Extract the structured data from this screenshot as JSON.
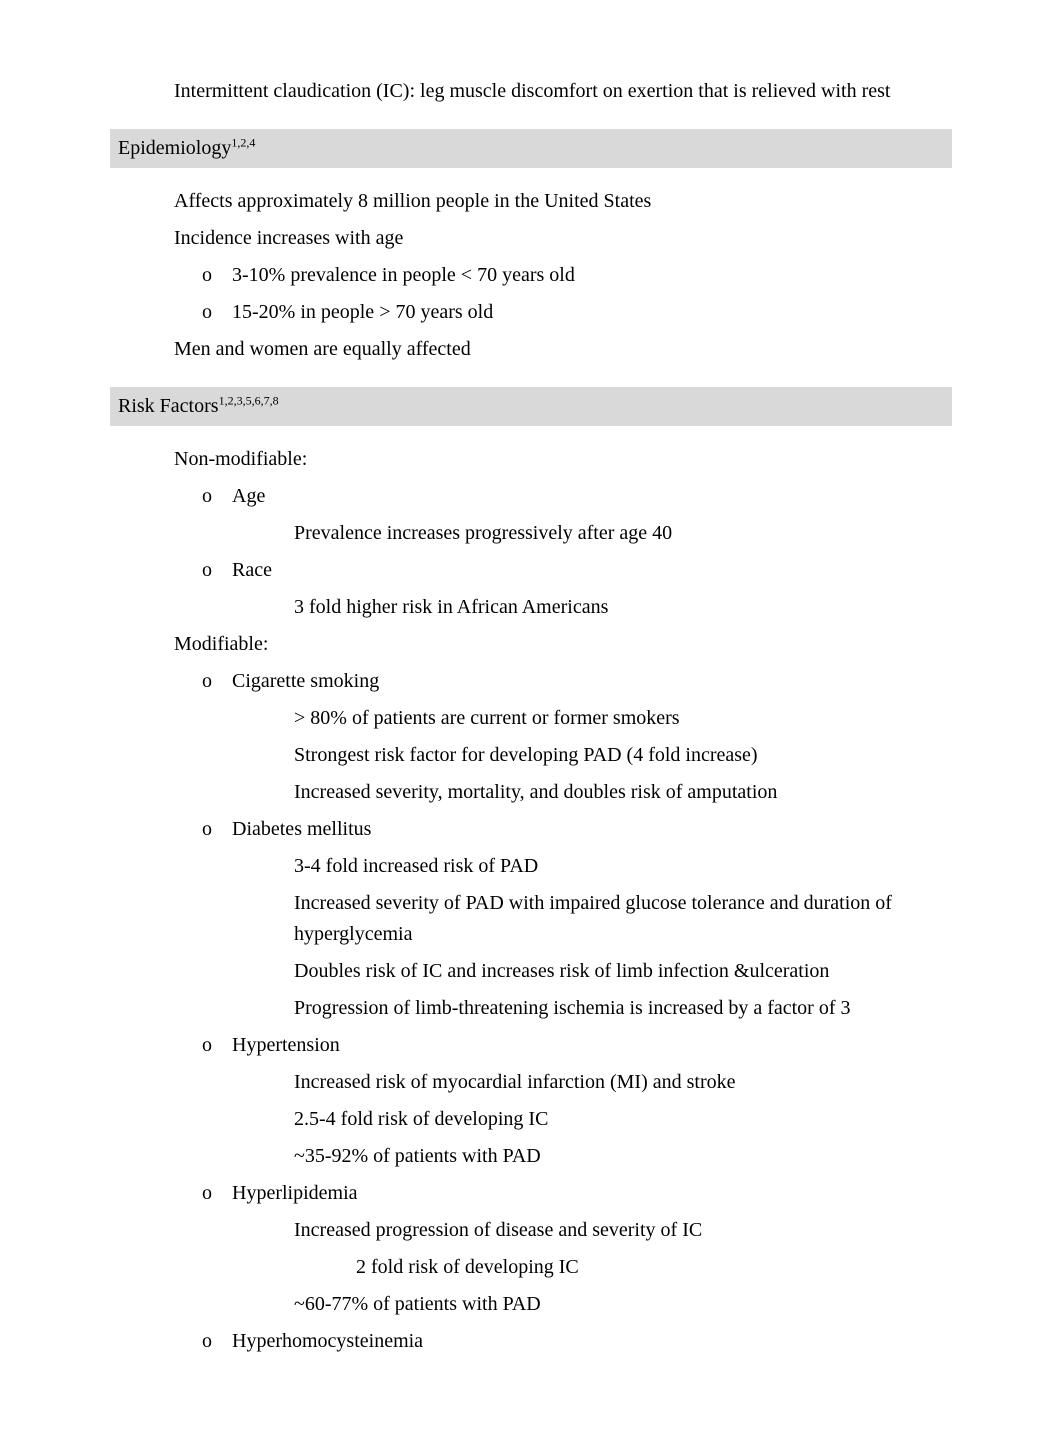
{
  "glyph": "",
  "o_marker": "o",
  "top_item": "Intermittent claudication (IC): leg muscle discomfort on exertion that is relieved with rest",
  "sections": [
    {
      "header": "Epidemiology",
      "header_sup": "1,2,4",
      "items": [
        {
          "text": "Affects approximately 8 million people in the United States"
        },
        {
          "text": "Incidence increases with age",
          "sub_o": [
            {
              "text": "3-10% prevalence in people < 70 years old"
            },
            {
              "text": "15-20% in people > 70 years old"
            }
          ]
        },
        {
          "text": "Men and women are equally affected"
        }
      ]
    },
    {
      "header": "Risk Factors",
      "header_sup": "1,2,3,5,6,7,8",
      "items": [
        {
          "text": "Non-modifiable:",
          "sub_o": [
            {
              "text": "Age",
              "sub_g": [
                {
                  "text": "Prevalence increases progressively after age 40"
                }
              ]
            },
            {
              "text": "Race",
              "sub_g": [
                {
                  "text": "3 fold higher risk in African Americans"
                }
              ]
            }
          ]
        },
        {
          "text": "Modifiable:",
          "sub_o": [
            {
              "text": "Cigarette smoking",
              "sub_g": [
                {
                  "text": "> 80% of patients are current or former smokers"
                },
                {
                  "text": "Strongest risk factor for developing PAD (4 fold increase)"
                },
                {
                  "text": "Increased severity, mortality, and doubles risk of amputation"
                }
              ]
            },
            {
              "text": "Diabetes mellitus",
              "sub_g": [
                {
                  "text": "3-4 fold increased risk of PAD"
                },
                {
                  "text": "Increased severity of PAD with impaired glucose tolerance and duration of hyperglycemia"
                },
                {
                  "text": "Doubles risk of IC and increases risk of limb infection &ulceration"
                },
                {
                  "text": "Progression of limb-threatening ischemia is increased by a factor of 3"
                }
              ]
            },
            {
              "text": "Hypertension",
              "sub_g": [
                {
                  "text": "Increased risk of myocardial infarction (MI) and stroke"
                },
                {
                  "text": "2.5-4 fold risk of developing IC"
                },
                {
                  "text": "~35-92% of patients with PAD"
                }
              ]
            },
            {
              "text": "Hyperlipidemia",
              "sub_g": [
                {
                  "text": "Increased progression of disease and severity of IC",
                  "sub_g4": [
                    {
                      "text": "2 fold risk of developing IC"
                    }
                  ]
                },
                {
                  "text": "~60-77% of patients with PAD"
                }
              ]
            },
            {
              "text": "Hyperhomocysteinemia",
              "extra_gap": true
            }
          ]
        }
      ]
    }
  ],
  "colors": {
    "background": "#ffffff",
    "section_header_bg": "#d9d9d9",
    "text": "#000000"
  },
  "typography": {
    "font_family": "Times New Roman",
    "body_fontsize": 20,
    "sup_fontsize": 12
  }
}
